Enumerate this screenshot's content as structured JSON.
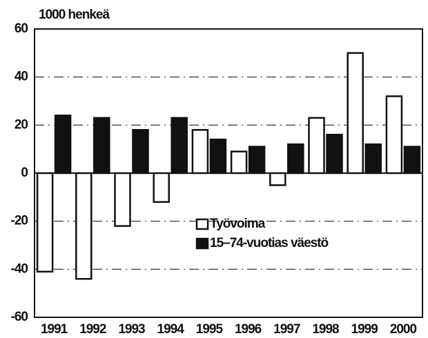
{
  "chart_data": {
    "type": "bar",
    "y_axis_label": "1000 henkeä",
    "categories": [
      "1991",
      "1992",
      "1993",
      "1994",
      "1995",
      "1996",
      "1997",
      "1998",
      "1999",
      "2000"
    ],
    "series": [
      {
        "name": "Työvoima",
        "color": "#ffffff",
        "values": [
          -41,
          -44,
          -22,
          -12,
          18,
          9,
          -5,
          23,
          50,
          32
        ]
      },
      {
        "name": "15–74-vuotias väestö",
        "color": "#111111",
        "values": [
          24,
          23,
          18,
          23,
          14,
          11,
          12,
          16,
          12,
          11
        ]
      }
    ],
    "ylim": [
      -60,
      60
    ],
    "yticks": [
      -60,
      -40,
      -20,
      0,
      20,
      40,
      60
    ],
    "grid": true
  }
}
